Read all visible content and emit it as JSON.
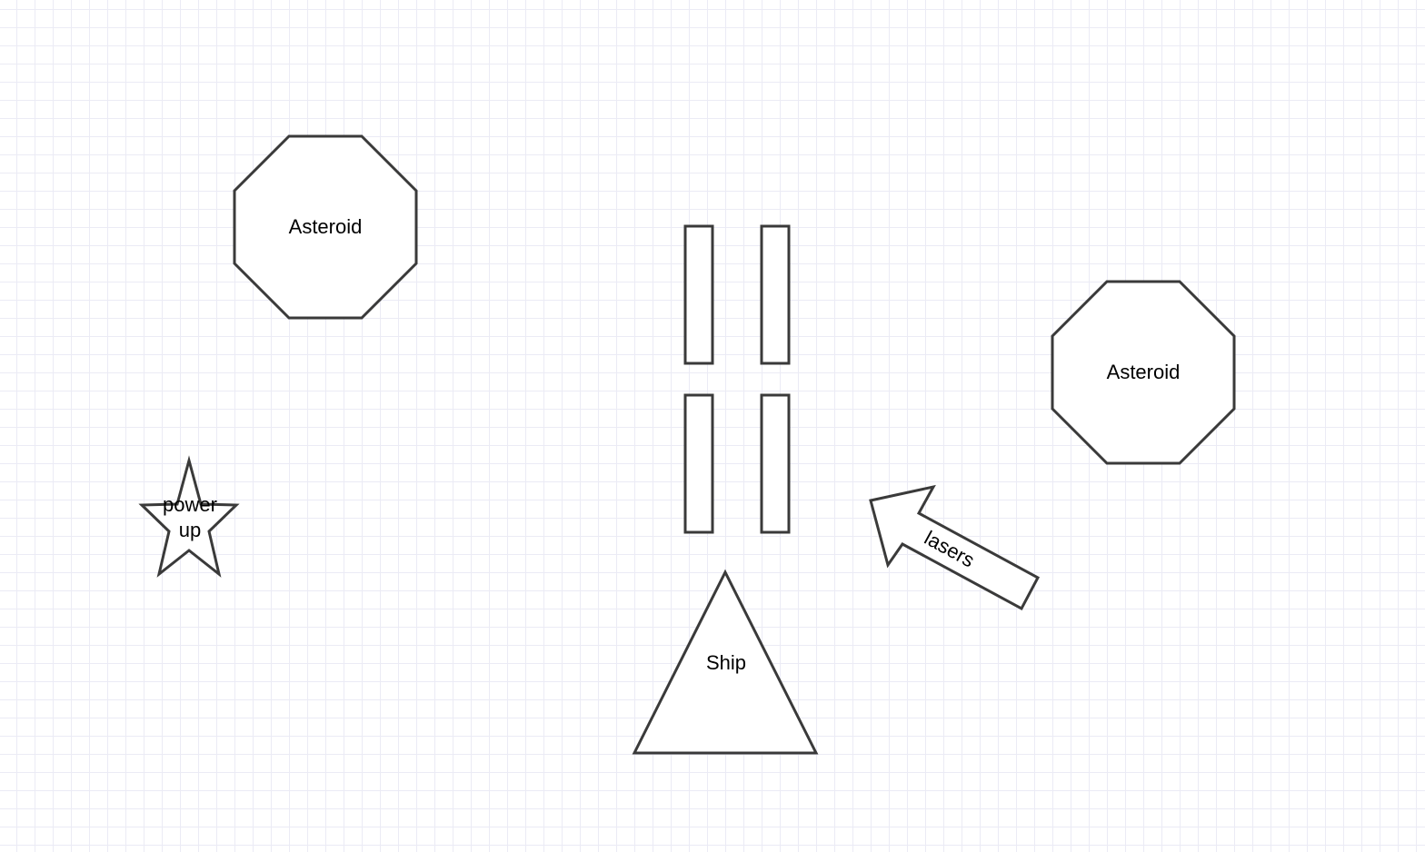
{
  "diagram": {
    "asteroid_left_label": "Asteroid",
    "asteroid_right_label": "Asteroid",
    "powerup_label_line1": "power",
    "powerup_label_line2": "up",
    "ship_label": "Ship",
    "lasers_label": "lasers"
  },
  "colors": {
    "stroke": "#3a3a3a",
    "fill": "#ffffff",
    "grid": "#ebebf5",
    "text": "#000000"
  }
}
